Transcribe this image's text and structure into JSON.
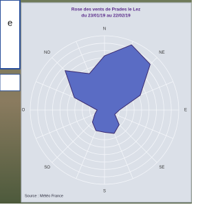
{
  "overlay": {
    "text": "e"
  },
  "chart_data": {
    "type": "windrose",
    "title": "Rose des vents de Prades le Lez",
    "subtitle": "du 23/01/19 au 22/02/19",
    "source": "Source : Météo France",
    "categories": [
      "N",
      null,
      "NE",
      null,
      "E",
      null,
      "SE",
      null,
      "S",
      null,
      "SO",
      null,
      "O",
      null,
      "NO",
      null
    ],
    "values": [
      7.3,
      9.5,
      8.7,
      5.2,
      2,
      1.5,
      2.8,
      3.4,
      3,
      3,
      2.3,
      1.4,
      1,
      4.4,
      7.5,
      5.3
    ],
    "rlim": [
      0,
      10
    ],
    "rings": 10,
    "color": "#5a6cc4",
    "grid": true
  }
}
